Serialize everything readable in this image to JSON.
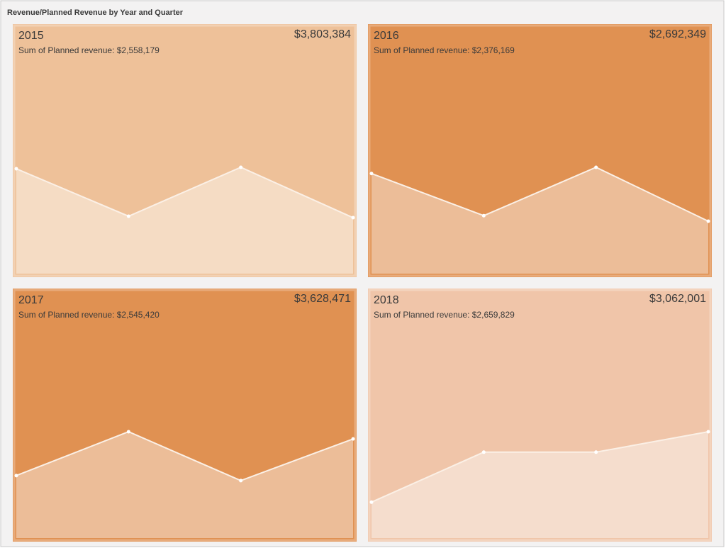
{
  "header": {
    "title": "Revenue/Planned Revenue by Year and Quarter"
  },
  "chart_data": [
    {
      "type": "area",
      "title": "2015",
      "total": "$3,803,384",
      "subtitle": "Sum of Planned revenue: $2,558,179",
      "values": [
        1229000,
        673000,
        1246000,
        656000
      ],
      "background": "#eec199",
      "color": "#f5dcc4"
    },
    {
      "type": "area",
      "title": "2016",
      "total": "$2,692,349",
      "subtitle": "Sum of Planned revenue: $2,376,169",
      "values": [
        850600,
        492700,
        903400,
        445800
      ],
      "background": "#e09152",
      "color": "#ecbd98"
    },
    {
      "type": "area",
      "title": "2017",
      "total": "$3,628,471",
      "subtitle": "Sum of Planned revenue: $2,545,420",
      "values": [
        696900,
        1185500,
        640800,
        1105400
      ],
      "background": "#e09152",
      "color": "#ecbd98"
    },
    {
      "type": "area",
      "title": "2018",
      "total": "$3,062,001",
      "subtitle": "Sum of Planned revenue: $2,659,829",
      "values": [
        350200,
        837600,
        837600,
        1036700
      ],
      "background": "#f0c5a9",
      "color": "#f5ddcd"
    }
  ]
}
